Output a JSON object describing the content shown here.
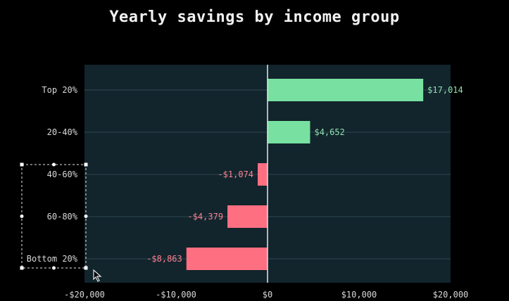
{
  "chart_data": {
    "type": "bar",
    "orientation": "horizontal",
    "title": "Yearly savings by income group",
    "categories": [
      "Top 20%",
      "20-40%",
      "40-60%",
      "60-80%",
      "Bottom 20%"
    ],
    "values": [
      17014,
      4652,
      -1074,
      -4379,
      -8863
    ],
    "value_labels": [
      "$17,014",
      "$4,652",
      "-$1,074",
      "-$4,379",
      "-$8,863"
    ],
    "xlim": [
      -20000,
      20000
    ],
    "x_ticks": [
      -20000,
      -10000,
      0,
      10000,
      20000
    ],
    "x_tick_labels": [
      "-$20,000",
      "-$10,000",
      "$0",
      "$10,000",
      "$20,000"
    ],
    "grid": "horizontal",
    "colors": {
      "positive": "#78e0a0",
      "negative": "#ff6f82",
      "positive_label": "#8fe0ad",
      "negative_label": "#ff8091",
      "plot_background": "#12242c",
      "zero_line": "#e6e6e6",
      "gridline": "#2f474f"
    }
  }
}
